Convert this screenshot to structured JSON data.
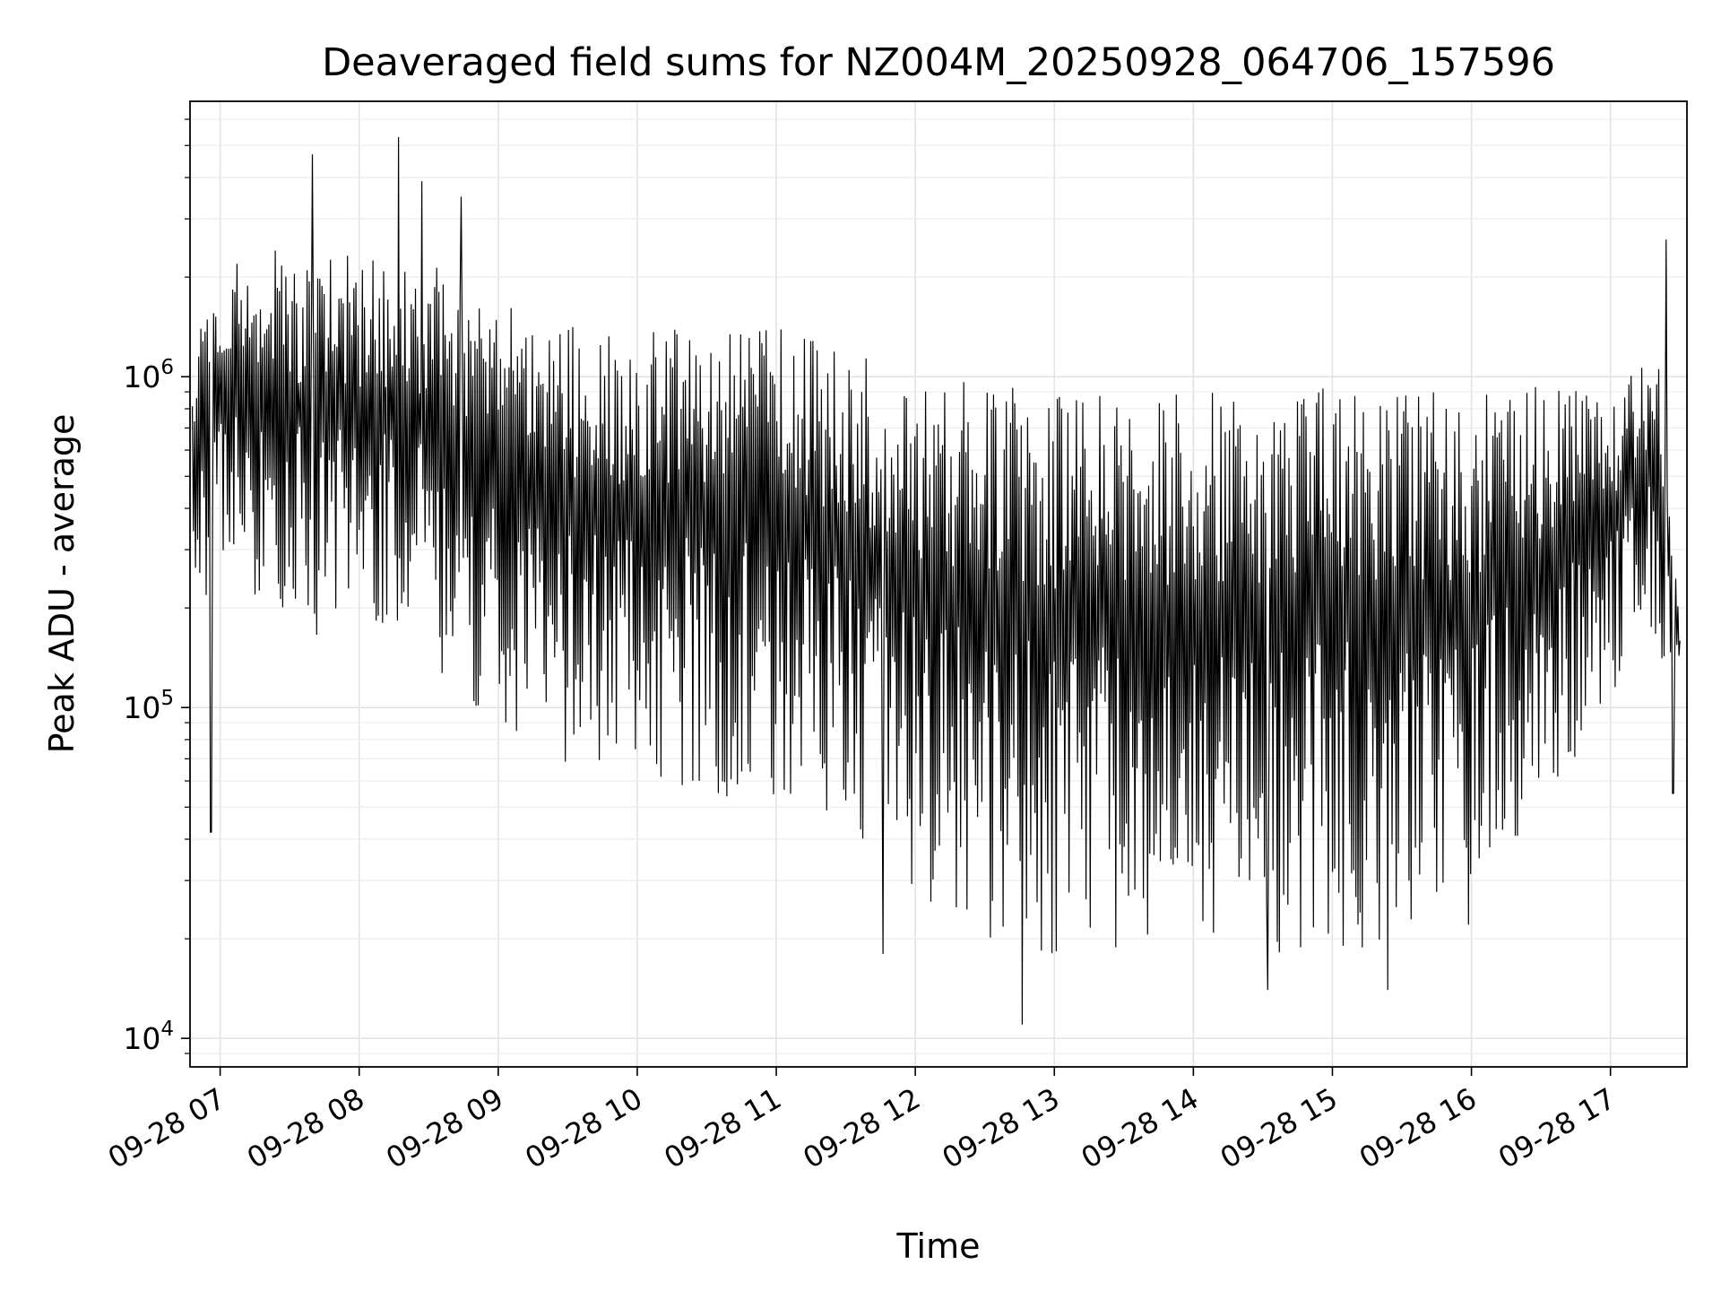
{
  "chart_data": {
    "type": "line",
    "title": "Deaveraged field sums for NZ004M_20250928_064706_157596",
    "xlabel": "Time",
    "ylabel": "Peak ADU - average",
    "yscale": "log",
    "ylim": [
      8200,
      6800000
    ],
    "xlim": [
      "2025-09-28 06:47",
      "2025-09-28 17:33"
    ],
    "grid": true,
    "x_tick_labels": [
      "09-28 07",
      "09-28 08",
      "09-28 09",
      "09-28 10",
      "09-28 11",
      "09-28 12",
      "09-28 13",
      "09-28 14",
      "09-28 15",
      "09-28 16",
      "09-28 17"
    ],
    "x_ticks": [
      "2025-09-28 07:00",
      "2025-09-28 08:00",
      "2025-09-28 09:00",
      "2025-09-28 10:00",
      "2025-09-28 11:00",
      "2025-09-28 12:00",
      "2025-09-28 13:00",
      "2025-09-28 14:00",
      "2025-09-28 15:00",
      "2025-09-28 16:00",
      "2025-09-28 17:00"
    ],
    "y_ticks": [
      {
        "value": 10000,
        "base": "10",
        "exp": "4"
      },
      {
        "value": 100000,
        "base": "10",
        "exp": "5"
      },
      {
        "value": 1000000,
        "base": "10",
        "exp": "6"
      }
    ],
    "series": [
      {
        "color": "#000000",
        "envelope": {
          "x": [
            "2025-09-28 06:48",
            "2025-09-28 07:00",
            "2025-09-28 07:30",
            "2025-09-28 08:00",
            "2025-09-28 08:30",
            "2025-09-28 09:00",
            "2025-09-28 09:30",
            "2025-09-28 10:00",
            "2025-09-28 10:30",
            "2025-09-28 11:00",
            "2025-09-28 11:30",
            "2025-09-28 12:00",
            "2025-09-28 12:30",
            "2025-09-28 13:00",
            "2025-09-28 13:30",
            "2025-09-28 14:00",
            "2025-09-28 14:30",
            "2025-09-28 15:00",
            "2025-09-28 15:30",
            "2025-09-28 16:00",
            "2025-09-28 16:15",
            "2025-09-28 16:30",
            "2025-09-28 17:00",
            "2025-09-28 17:20",
            "2025-09-28 17:30"
          ],
          "upper": [
            1200000,
            2200000,
            2500000,
            2300000,
            2200000,
            1800000,
            1500000,
            1400000,
            1450000,
            1400000,
            1300000,
            1000000,
            950000,
            900000,
            950000,
            920000,
            930000,
            950000,
            930000,
            900000,
            950000,
            950000,
            900000,
            1500000,
            180000
          ],
          "lower": [
            150000,
            300000,
            150000,
            170000,
            130000,
            80000,
            65000,
            60000,
            55000,
            50000,
            38000,
            26000,
            20000,
            18000,
            17000,
            18000,
            17000,
            18000,
            17000,
            20000,
            38000,
            40000,
            110000,
            130000,
            120000
          ]
        },
        "spikes": [
          {
            "x": "2025-09-28 07:40",
            "y": 4700000
          },
          {
            "x": "2025-09-28 08:17",
            "y": 5300000
          },
          {
            "x": "2025-09-28 08:27",
            "y": 3900000
          },
          {
            "x": "2025-09-28 08:44",
            "y": 3500000
          },
          {
            "x": "2025-09-28 06:56",
            "y": 42000
          },
          {
            "x": "2025-09-28 11:46",
            "y": 18000
          },
          {
            "x": "2025-09-28 12:46",
            "y": 11000
          },
          {
            "x": "2025-09-28 14:32",
            "y": 14000
          },
          {
            "x": "2025-09-28 15:24",
            "y": 14000
          },
          {
            "x": "2025-09-28 17:24",
            "y": 2600000
          },
          {
            "x": "2025-09-28 17:27",
            "y": 55000
          }
        ]
      }
    ]
  }
}
